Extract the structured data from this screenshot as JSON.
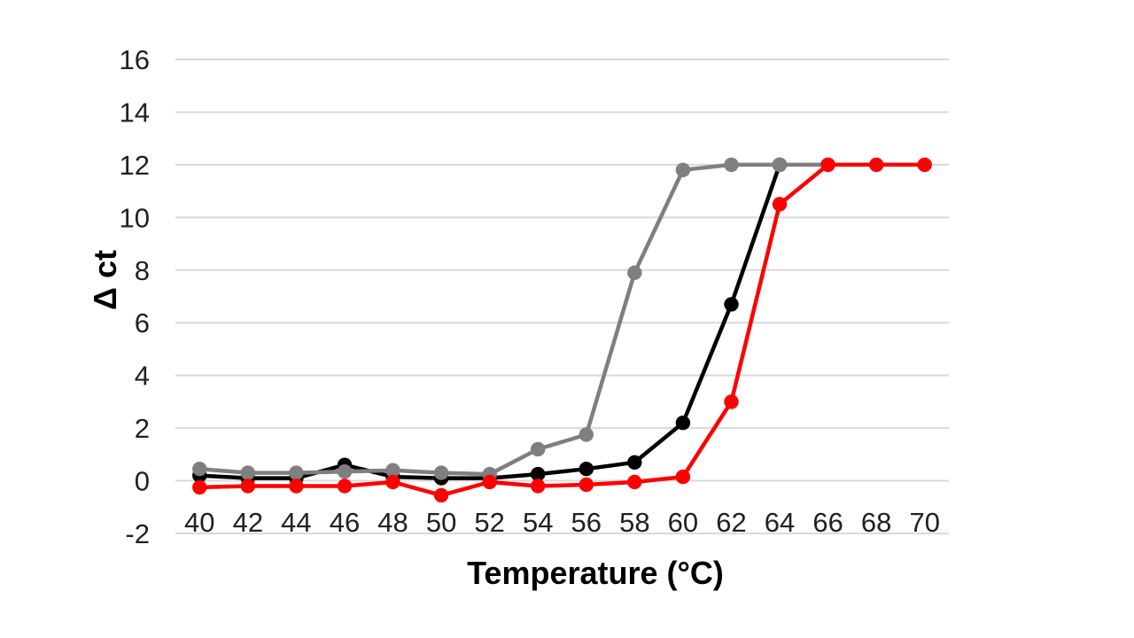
{
  "page": {
    "background_color": "#FFFFFF"
  },
  "chart_data": {
    "type": "line",
    "title": "",
    "xlabel": "Temperature (°C)",
    "ylabel": "Δ ct",
    "x": [
      40,
      42,
      44,
      46,
      48,
      50,
      52,
      54,
      56,
      58,
      60,
      62,
      64,
      66,
      68,
      70
    ],
    "x_tick_labels": [
      "40",
      "42",
      "44",
      "46",
      "48",
      "50",
      "52",
      "54",
      "56",
      "58",
      "60",
      "62",
      "64",
      "66",
      "68",
      "70"
    ],
    "y_tick_labels": [
      "-2",
      "0",
      "2",
      "4",
      "6",
      "8",
      "10",
      "12",
      "14",
      "16"
    ],
    "ylim": [
      -2,
      16
    ],
    "y_tick_step": 2,
    "grid": "horizontal-only",
    "grid_color": "#D9D9D9",
    "axis_text_color": "#212121",
    "legend": "none",
    "marker": "circle",
    "series": [
      {
        "name": "black",
        "color": "#000000",
        "values": [
          0.2,
          0.1,
          0.1,
          0.6,
          0.15,
          0.1,
          0.1,
          0.25,
          0.45,
          0.7,
          2.2,
          6.7,
          12,
          null,
          null,
          null
        ]
      },
      {
        "name": "gray",
        "color": "#7F7F7F",
        "values": [
          0.45,
          0.3,
          0.3,
          0.35,
          0.4,
          0.3,
          0.25,
          1.2,
          1.75,
          7.9,
          11.8,
          12,
          12,
          12,
          null,
          null
        ]
      },
      {
        "name": "red",
        "color": "#FF0000",
        "values": [
          -0.25,
          -0.2,
          -0.2,
          -0.2,
          -0.05,
          -0.55,
          -0.05,
          -0.2,
          -0.15,
          -0.05,
          0.15,
          3.0,
          10.5,
          12,
          12,
          12
        ]
      }
    ]
  }
}
